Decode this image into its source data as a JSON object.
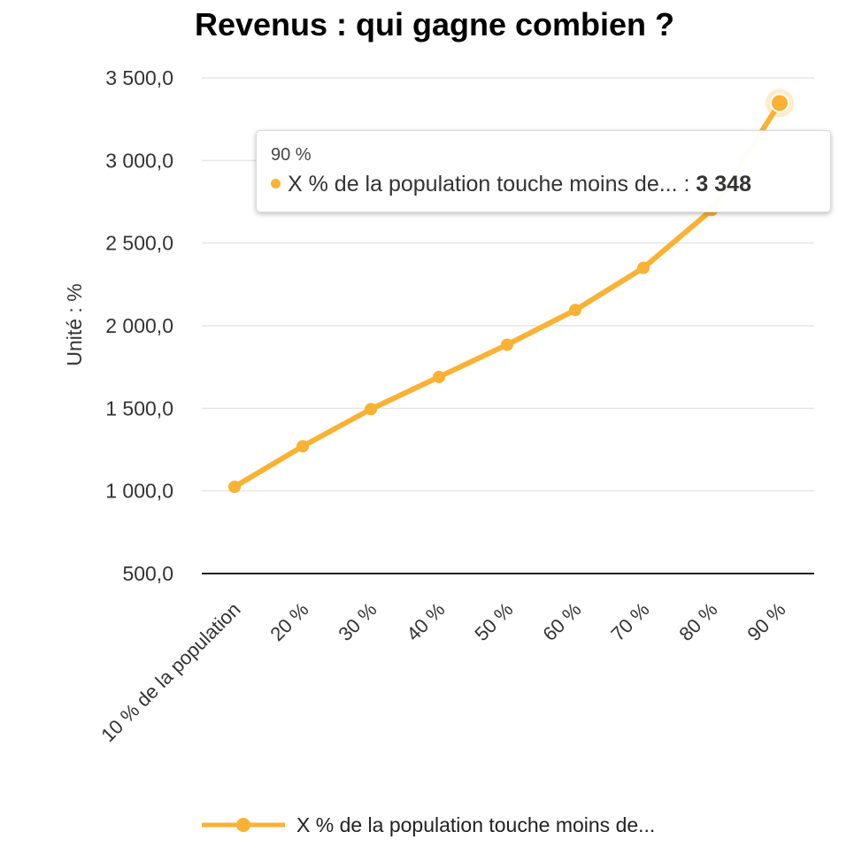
{
  "chart_data": {
    "type": "line",
    "title": "Revenus : qui gagne combien ?",
    "ylabel": "Unité : %",
    "xlabel": "",
    "categories": [
      "10 % de la population",
      "20 %",
      "30 %",
      "40 %",
      "50 %",
      "60 %",
      "70 %",
      "80 %",
      "90 %"
    ],
    "series": [
      {
        "name": "X % de la population touche moins de...",
        "values": [
          1025,
          1270,
          1495,
          1690,
          1885,
          2095,
          2350,
          2700,
          3348
        ],
        "color": "#f9b233"
      }
    ],
    "ylim": [
      500,
      3500
    ],
    "yticks": [
      "500,0",
      "1 000,0",
      "1 500,0",
      "2 000,0",
      "2 500,0",
      "3 000,0",
      "3 500,0"
    ],
    "grid": true,
    "legend_position": "bottom-center"
  },
  "tooltip": {
    "header": "90 %",
    "series_label": "X % de la population touche moins de... : ",
    "value": "3 348",
    "highlighted_index": 8
  }
}
